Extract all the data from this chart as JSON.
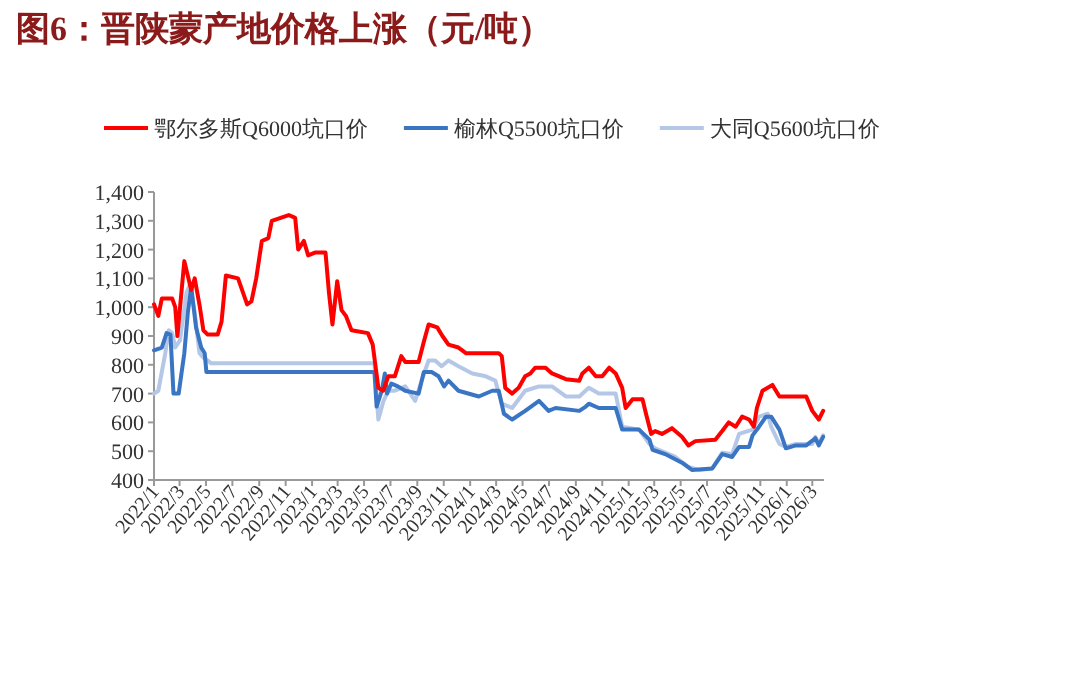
{
  "chart_data": {
    "type": "line",
    "title": "图6：晋陕蒙产地价格上涨（元/吨）",
    "legend": "top",
    "line_style": "solid",
    "marker": "none",
    "grid": false,
    "xlim": [
      "2022-01-01",
      "2026-03-28"
    ],
    "xticks": [
      {
        "value": "2022-01",
        "label": "2022/1"
      },
      {
        "value": "2022-03",
        "label": "2022/3"
      },
      {
        "value": "2022-05",
        "label": "2022/5"
      },
      {
        "value": "2022-07",
        "label": "2022/7"
      },
      {
        "value": "2022-09",
        "label": "2022/9"
      },
      {
        "value": "2022-11",
        "label": "2022/11"
      },
      {
        "value": "2023-01",
        "label": "2023/1"
      },
      {
        "value": "2023-03",
        "label": "2023/3"
      },
      {
        "value": "2023-05",
        "label": "2023/5"
      },
      {
        "value": "2023-07",
        "label": "2023/7"
      },
      {
        "value": "2023-09",
        "label": "2023/9"
      },
      {
        "value": "2023-11",
        "label": "2023/11"
      },
      {
        "value": "2024-01",
        "label": "2024/1"
      },
      {
        "value": "2024-03",
        "label": "2024/3"
      },
      {
        "value": "2024-05",
        "label": "2024/5"
      },
      {
        "value": "2024-07",
        "label": "2024/7"
      },
      {
        "value": "2024-09",
        "label": "2024/9"
      },
      {
        "value": "2024-11",
        "label": "2024/11"
      },
      {
        "value": "2025-01",
        "label": "2025/1"
      },
      {
        "value": "2025-03",
        "label": "2025/3"
      },
      {
        "value": "2025-05",
        "label": "2025/5"
      },
      {
        "value": "2025-07",
        "label": "2025/7"
      },
      {
        "value": "2025-09",
        "label": "2025/9"
      },
      {
        "value": "2025-11",
        "label": "2025/11"
      },
      {
        "value": "2026-01",
        "label": "2026/1"
      },
      {
        "value": "2026-03",
        "label": "2026/3"
      }
    ],
    "ylim": [
      400,
      1400
    ],
    "yticks": [
      400,
      500,
      600,
      700,
      800,
      900,
      {
        "value": 1000,
        "label": "1,000"
      },
      {
        "value": 1100,
        "label": "1,100"
      },
      {
        "value": 1200,
        "label": "1,200"
      },
      {
        "value": 1300,
        "label": "1,300"
      },
      {
        "value": 1400,
        "label": "1,400"
      }
    ],
    "series": [
      {
        "name": "鄂尔多斯Q6000坑口价",
        "color": "#ff0000",
        "x": [
          "2022-01-01",
          "2022-01-11",
          "2022-01-19",
          "2022-02-12",
          "2022-02-19",
          "2022-02-24",
          "2022-03-12",
          "2022-03-28",
          "2022-04-05",
          "2022-04-17",
          "2022-04-25",
          "2022-05-05",
          "2022-05-28",
          "2022-06-06",
          "2022-06-16",
          "2022-07-14",
          "2022-08-04",
          "2022-08-14",
          "2022-08-25",
          "2022-09-07",
          "2022-09-22",
          "2022-09-30",
          "2022-11-08",
          "2022-11-23",
          "2022-11-30",
          "2022-12-13",
          "2022-12-23",
          "2023-01-09",
          "2023-02-01",
          "2023-02-09",
          "2023-02-17",
          "2023-02-28",
          "2023-03-10",
          "2023-03-20",
          "2023-04-02",
          "2023-05-10",
          "2023-05-21",
          "2023-06-03",
          "2023-06-14",
          "2023-06-26",
          "2023-07-11",
          "2023-07-26",
          "2023-08-04",
          "2023-09-04",
          "2023-09-16",
          "2023-09-27",
          "2023-10-17",
          "2023-10-29",
          "2023-11-12",
          "2023-12-05",
          "2023-12-23",
          "2024-03-07",
          "2024-03-14",
          "2024-03-22",
          "2024-04-07",
          "2024-04-22",
          "2024-05-07",
          "2024-05-19",
          "2024-05-30",
          "2024-06-23",
          "2024-07-08",
          "2024-08-09",
          "2024-09-09",
          "2024-09-16",
          "2024-10-01",
          "2024-10-17",
          "2024-11-01",
          "2024-11-17",
          "2024-12-02",
          "2024-12-17",
          "2024-12-25",
          "2025-01-10",
          "2025-02-02",
          "2025-02-10",
          "2025-02-22",
          "2025-03-03",
          "2025-03-19",
          "2025-04-11",
          "2025-05-04",
          "2025-05-19",
          "2025-06-04",
          "2025-07-20",
          "2025-08-05",
          "2025-08-20",
          "2025-09-05",
          "2025-09-20",
          "2025-10-06",
          "2025-10-17",
          "2025-10-24",
          "2025-11-06",
          "2025-11-29",
          "2025-12-15",
          "2026-02-15",
          "2026-03-01",
          "2026-03-16",
          "2026-03-26"
        ],
        "values": [
          1010,
          970,
          1030,
          1030,
          1000,
          900,
          1160,
          1060,
          1100,
          1000,
          920,
          905,
          905,
          950,
          1110,
          1100,
          1010,
          1020,
          1100,
          1230,
          1240,
          1300,
          1320,
          1310,
          1200,
          1230,
          1180,
          1190,
          1190,
          1050,
          940,
          1090,
          990,
          970,
          920,
          910,
          870,
          720,
          710,
          760,
          760,
          830,
          810,
          810,
          880,
          940,
          930,
          900,
          870,
          860,
          840,
          840,
          830,
          720,
          700,
          720,
          760,
          770,
          790,
          790,
          770,
          750,
          745,
          770,
          790,
          760,
          760,
          790,
          770,
          720,
          650,
          680,
          680,
          630,
          560,
          570,
          560,
          580,
          550,
          520,
          535,
          540,
          570,
          600,
          585,
          620,
          610,
          585,
          650,
          710,
          730,
          690,
          690,
          640,
          610,
          640
        ]
      },
      {
        "name": "榆林Q5500坑口价",
        "color": "#3a75c4",
        "x": [
          "2022-01-01",
          "2022-01-19",
          "2022-01-30",
          "2022-02-08",
          "2022-02-15",
          "2022-02-27",
          "2022-03-05",
          "2022-03-12",
          "2022-03-20",
          "2022-03-28",
          "2022-04-08",
          "2022-04-20",
          "2022-04-28",
          "2022-05-02",
          "2023-05-25",
          "2023-05-30",
          "2023-06-11",
          "2023-06-18",
          "2023-06-23",
          "2023-07-03",
          "2023-07-18",
          "2023-08-04",
          "2023-09-04",
          "2023-09-16",
          "2023-10-04",
          "2023-10-20",
          "2023-11-02",
          "2023-11-12",
          "2023-12-05",
          "2024-01-21",
          "2024-02-21",
          "2024-03-07",
          "2024-03-19",
          "2024-04-07",
          "2024-05-07",
          "2024-06-08",
          "2024-06-30",
          "2024-07-16",
          "2024-09-09",
          "2024-09-24",
          "2024-10-01",
          "2024-10-24",
          "2024-12-02",
          "2024-12-17",
          "2025-01-25",
          "2025-02-18",
          "2025-02-25",
          "2025-03-26",
          "2025-05-04",
          "2025-05-27",
          "2025-07-13",
          "2025-08-05",
          "2025-08-28",
          "2025-09-13",
          "2025-10-06",
          "2025-10-14",
          "2025-10-29",
          "2025-11-14",
          "2025-11-26",
          "2025-12-15",
          "2025-12-30",
          "2026-01-22",
          "2026-02-15",
          "2026-03-08",
          "2026-03-16",
          "2026-03-26"
        ],
        "values": [
          850,
          860,
          910,
          905,
          700,
          700,
          765,
          840,
          980,
          1070,
          930,
          860,
          840,
          775,
          775,
          655,
          710,
          770,
          700,
          735,
          725,
          710,
          700,
          775,
          775,
          760,
          725,
          745,
          710,
          690,
          710,
          710,
          630,
          610,
          640,
          675,
          640,
          650,
          640,
          655,
          665,
          650,
          650,
          575,
          575,
          540,
          505,
          490,
          460,
          435,
          440,
          490,
          480,
          515,
          515,
          555,
          585,
          620,
          620,
          575,
          510,
          520,
          520,
          545,
          520,
          550
        ]
      },
      {
        "name": "大同Q5600坑口价",
        "color": "#b4c7e7",
        "x": [
          "2022-01-01",
          "2022-01-11",
          "2022-01-27",
          "2022-02-04",
          "2022-02-12",
          "2022-02-19",
          "2022-03-02",
          "2022-03-17",
          "2022-03-25",
          "2022-04-05",
          "2022-04-16",
          "2022-04-25",
          "2022-05-05",
          "2022-05-13",
          "2023-05-25",
          "2023-06-03",
          "2023-06-15",
          "2023-06-26",
          "2023-07-11",
          "2023-08-04",
          "2023-08-27",
          "2023-09-11",
          "2023-09-27",
          "2023-10-12",
          "2023-10-27",
          "2023-11-12",
          "2023-12-05",
          "2024-01-06",
          "2024-02-06",
          "2024-02-28",
          "2024-03-14",
          "2024-04-07",
          "2024-05-07",
          "2024-06-08",
          "2024-07-08",
          "2024-08-09",
          "2024-09-09",
          "2024-10-01",
          "2024-10-24",
          "2024-12-02",
          "2024-12-17",
          "2025-01-25",
          "2025-02-18",
          "2025-03-03",
          "2025-04-19",
          "2025-05-19",
          "2025-06-12",
          "2025-07-13",
          "2025-08-05",
          "2025-08-28",
          "2025-09-13",
          "2025-10-14",
          "2025-10-29",
          "2025-11-18",
          "2025-11-26",
          "2025-12-15",
          "2025-12-30",
          "2026-01-22",
          "2026-03-01",
          "2026-03-08",
          "2026-03-16",
          "2026-03-26"
        ],
        "values": [
          700,
          710,
          840,
          920,
          910,
          860,
          885,
          1050,
          1080,
          980,
          840,
          825,
          815,
          805,
          805,
          610,
          675,
          710,
          710,
          725,
          675,
          745,
          815,
          815,
          795,
          815,
          795,
          770,
          760,
          745,
          665,
          650,
          710,
          725,
          725,
          690,
          690,
          720,
          700,
          700,
          585,
          575,
          525,
          510,
          480,
          445,
          435,
          440,
          495,
          490,
          560,
          575,
          620,
          630,
          585,
          525,
          515,
          525,
          525,
          550,
          525,
          555
        ]
      }
    ]
  }
}
